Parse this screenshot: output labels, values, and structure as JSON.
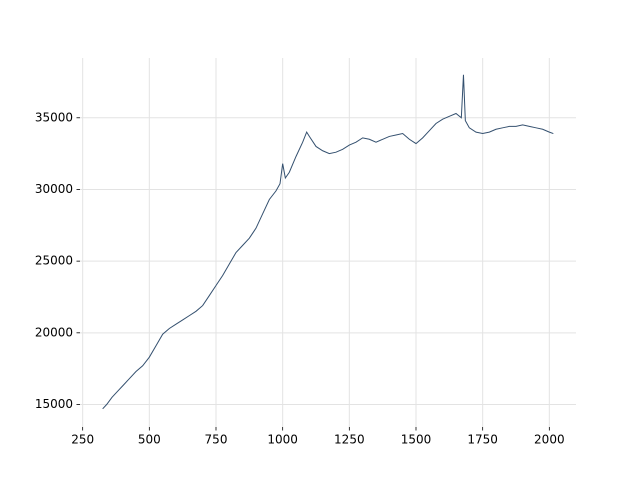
{
  "chart_data": {
    "type": "line",
    "x": [
      325,
      340,
      360,
      380,
      400,
      425,
      450,
      475,
      500,
      525,
      550,
      575,
      600,
      625,
      650,
      675,
      700,
      725,
      750,
      775,
      800,
      825,
      850,
      875,
      900,
      925,
      950,
      975,
      990,
      1000,
      1010,
      1025,
      1050,
      1075,
      1090,
      1100,
      1125,
      1150,
      1175,
      1200,
      1225,
      1250,
      1275,
      1300,
      1325,
      1350,
      1375,
      1400,
      1425,
      1450,
      1475,
      1500,
      1525,
      1550,
      1575,
      1600,
      1625,
      1650,
      1670,
      1678,
      1685,
      1700,
      1725,
      1750,
      1775,
      1800,
      1825,
      1850,
      1875,
      1900,
      1925,
      1950,
      1975,
      2000,
      2015
    ],
    "values": [
      14700,
      15000,
      15500,
      15900,
      16300,
      16800,
      17300,
      17700,
      18300,
      19100,
      19900,
      20300,
      20600,
      20900,
      21200,
      21500,
      21900,
      22600,
      23300,
      24000,
      24800,
      25600,
      26100,
      26600,
      27300,
      28300,
      29300,
      29900,
      30400,
      31800,
      30800,
      31200,
      32300,
      33300,
      34000,
      33700,
      33000,
      32700,
      32500,
      32600,
      32800,
      33100,
      33300,
      33600,
      33500,
      33300,
      33500,
      33700,
      33800,
      33900,
      33500,
      33200,
      33600,
      34100,
      34600,
      34900,
      35100,
      35300,
      35000,
      38000,
      34800,
      34300,
      34000,
      33900,
      34000,
      34200,
      34300,
      34400,
      34400,
      34500,
      34400,
      34300,
      34200,
      34000,
      33900
    ],
    "color": "#34506f",
    "xlim": [
      240,
      2100
    ],
    "xticks": [
      250,
      500,
      750,
      1000,
      1250,
      1500,
      1750,
      2000
    ],
    "ylim": [
      13430,
      39170
    ],
    "yticks": [
      15000,
      20000,
      25000,
      30000,
      35000
    ],
    "grid": true
  }
}
